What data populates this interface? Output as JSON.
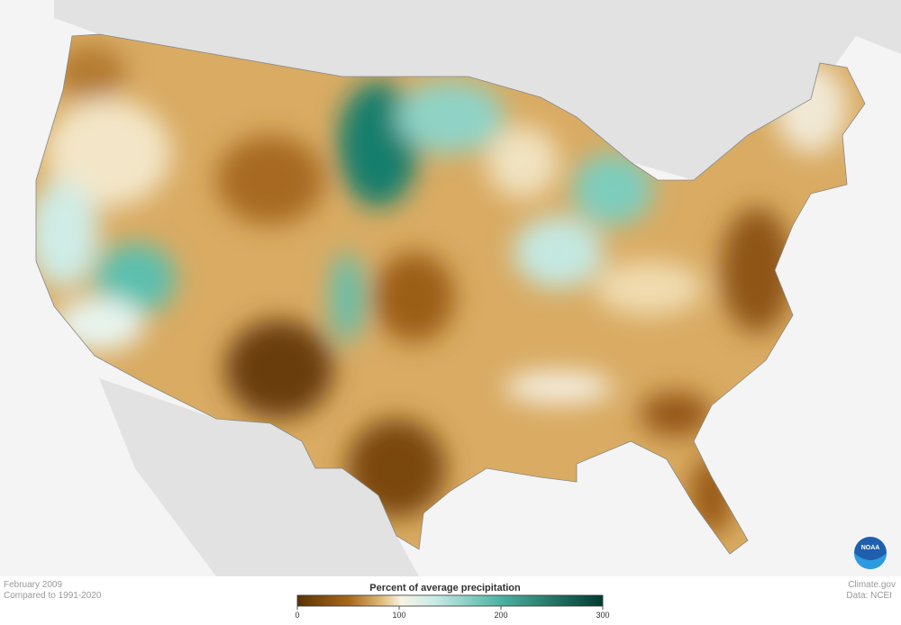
{
  "header": {
    "date": "February 2009",
    "baseline": "Compared to 1991-2020"
  },
  "legend": {
    "title": "Percent of average precipitation",
    "range": [
      0,
      300
    ],
    "ticks": [
      0,
      100,
      200,
      300
    ]
  },
  "credits": {
    "source": "Climate.gov",
    "data": "Data: NCEI",
    "logo": "NOAA"
  }
}
